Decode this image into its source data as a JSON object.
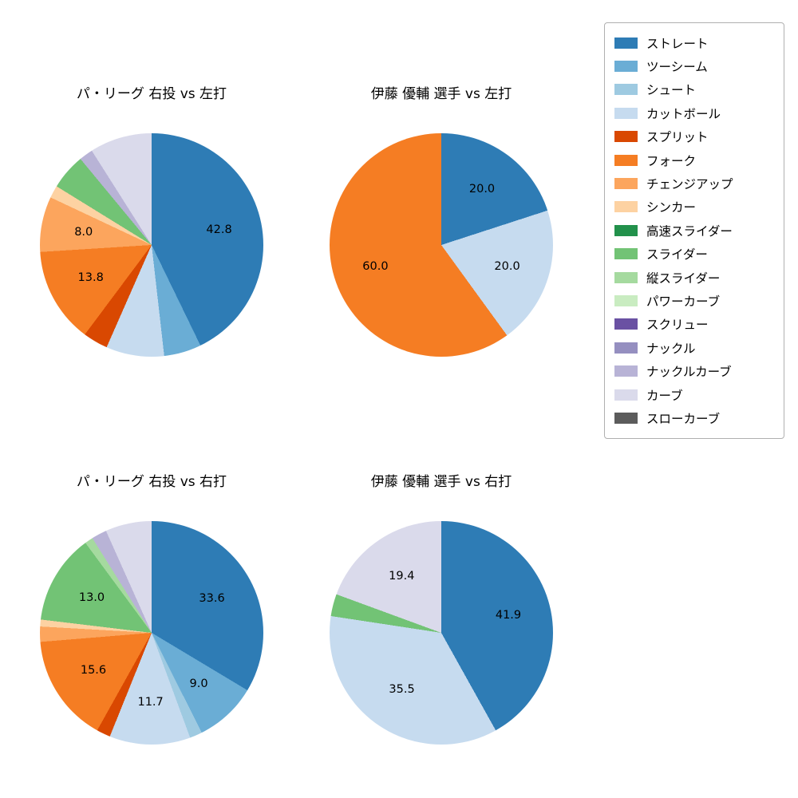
{
  "legend": {
    "items": [
      {
        "label": "ストレート",
        "color": "#2e7cb5"
      },
      {
        "label": "ツーシーム",
        "color": "#6aadd5"
      },
      {
        "label": "シュート",
        "color": "#9ecae1"
      },
      {
        "label": "カットボール",
        "color": "#c6dbef"
      },
      {
        "label": "スプリット",
        "color": "#d94801"
      },
      {
        "label": "フォーク",
        "color": "#f57d23"
      },
      {
        "label": "チェンジアップ",
        "color": "#fca55d"
      },
      {
        "label": "シンカー",
        "color": "#fdd2a2"
      },
      {
        "label": "高速スライダー",
        "color": "#22914b"
      },
      {
        "label": "スライダー",
        "color": "#72c375"
      },
      {
        "label": "縦スライダー",
        "color": "#a5da9f"
      },
      {
        "label": "パワーカーブ",
        "color": "#c9ecc1"
      },
      {
        "label": "スクリュー",
        "color": "#6a51a3"
      },
      {
        "label": "ナックル",
        "color": "#958fc0"
      },
      {
        "label": "ナックルカーブ",
        "color": "#b8b3d6"
      },
      {
        "label": "カーブ",
        "color": "#dadaeb"
      },
      {
        "label": "スローカーブ",
        "color": "#5c5c5c"
      }
    ]
  },
  "chart_data": [
    {
      "type": "pie",
      "title": "パ・リーグ 右投 vs 左打",
      "start_angle_deg": 0,
      "direction": "clockwise",
      "slices": [
        {
          "name": "ストレート",
          "value": 42.8,
          "label": "42.8"
        },
        {
          "name": "ツーシーム",
          "value": 5.4,
          "label": ""
        },
        {
          "name": "カットボール",
          "value": 8.4,
          "label": ""
        },
        {
          "name": "スプリット",
          "value": 3.6,
          "label": ""
        },
        {
          "name": "フォーク",
          "value": 13.8,
          "label": "13.8"
        },
        {
          "name": "チェンジアップ",
          "value": 8.0,
          "label": "8.0"
        },
        {
          "name": "シンカー",
          "value": 1.8,
          "label": ""
        },
        {
          "name": "スライダー",
          "value": 5.2,
          "label": ""
        },
        {
          "name": "ナックルカーブ",
          "value": 2.0,
          "label": ""
        },
        {
          "name": "カーブ",
          "value": 9.0,
          "label": ""
        }
      ]
    },
    {
      "type": "pie",
      "title": "伊藤 優輔 選手 vs 左打",
      "start_angle_deg": 0,
      "direction": "clockwise",
      "slices": [
        {
          "name": "ストレート",
          "value": 20.0,
          "label": "20.0"
        },
        {
          "name": "カットボール",
          "value": 20.0,
          "label": "20.0"
        },
        {
          "name": "フォーク",
          "value": 60.0,
          "label": "60.0"
        }
      ]
    },
    {
      "type": "pie",
      "title": "パ・リーグ 右投 vs 右打",
      "start_angle_deg": 0,
      "direction": "clockwise",
      "slices": [
        {
          "name": "ストレート",
          "value": 33.6,
          "label": "33.6"
        },
        {
          "name": "ツーシーム",
          "value": 9.0,
          "label": "9.0"
        },
        {
          "name": "シュート",
          "value": 1.8,
          "label": ""
        },
        {
          "name": "カットボール",
          "value": 11.7,
          "label": "11.7"
        },
        {
          "name": "スプリット",
          "value": 2.0,
          "label": ""
        },
        {
          "name": "フォーク",
          "value": 15.6,
          "label": "15.6"
        },
        {
          "name": "チェンジアップ",
          "value": 2.2,
          "label": ""
        },
        {
          "name": "シンカー",
          "value": 1.0,
          "label": ""
        },
        {
          "name": "スライダー",
          "value": 13.0,
          "label": "13.0"
        },
        {
          "name": "縦スライダー",
          "value": 1.2,
          "label": ""
        },
        {
          "name": "ナックルカーブ",
          "value": 2.2,
          "label": ""
        },
        {
          "name": "カーブ",
          "value": 6.7,
          "label": ""
        }
      ]
    },
    {
      "type": "pie",
      "title": "伊藤 優輔 選手 vs 右打",
      "start_angle_deg": 0,
      "direction": "clockwise",
      "slices": [
        {
          "name": "ストレート",
          "value": 41.9,
          "label": "41.9"
        },
        {
          "name": "カットボール",
          "value": 35.5,
          "label": "35.5"
        },
        {
          "name": "スライダー",
          "value": 3.2,
          "label": ""
        },
        {
          "name": "カーブ",
          "value": 19.4,
          "label": "19.4"
        }
      ]
    }
  ]
}
